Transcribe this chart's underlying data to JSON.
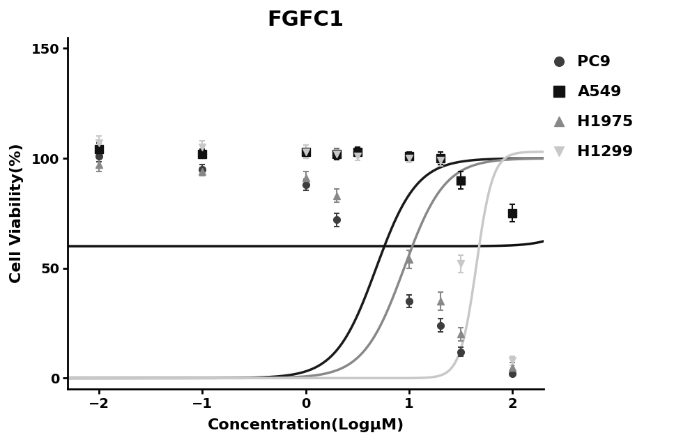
{
  "title": "FGFC1",
  "xlabel": "Concentration(LogμM)",
  "ylabel": "Cell Viability(%)",
  "xlim": [
    -2.3,
    2.3
  ],
  "ylim": [
    -5,
    155
  ],
  "yticks": [
    0,
    50,
    100,
    150
  ],
  "xticks": [
    -2,
    -1,
    0,
    1,
    2
  ],
  "background_color": "#ffffff",
  "series": [
    {
      "name": "PC9",
      "color": "#3d3d3d",
      "marker": "o",
      "markersize": 7,
      "linecolor": "#1a1a1a",
      "linewidth": 2.5,
      "x": [
        -2.0,
        -1.0,
        0.0,
        0.3,
        1.0,
        1.3,
        1.5,
        2.0
      ],
      "y": [
        101,
        95,
        88,
        72,
        35,
        24,
        12,
        2
      ],
      "yerr": [
        2.5,
        2.0,
        2.5,
        3.0,
        3.0,
        3.0,
        2.0,
        1.0
      ],
      "top": 100,
      "bottom": 0,
      "ic50_log": 0.68,
      "hill": 2.2
    },
    {
      "name": "A549",
      "color": "#111111",
      "marker": "s",
      "markersize": 8,
      "linecolor": "#111111",
      "linewidth": 2.5,
      "x": [
        -2.0,
        -1.0,
        0.0,
        0.3,
        0.5,
        1.0,
        1.3,
        1.5,
        2.0
      ],
      "y": [
        104,
        102,
        103,
        102,
        103,
        101,
        100,
        90,
        75
      ],
      "yerr": [
        3.0,
        2.0,
        3.0,
        2.5,
        2.0,
        2.0,
        3.0,
        4.0,
        4.0
      ],
      "top": 103,
      "bottom": 60,
      "ic50_log": 2.8,
      "hill": 2.5
    },
    {
      "name": "H1975",
      "color": "#888888",
      "marker": "^",
      "markersize": 7,
      "linecolor": "#888888",
      "linewidth": 2.5,
      "x": [
        -2.0,
        -1.0,
        0.0,
        0.3,
        1.0,
        1.3,
        1.5,
        2.0
      ],
      "y": [
        97,
        94,
        91,
        83,
        54,
        35,
        20,
        5
      ],
      "yerr": [
        3.0,
        2.0,
        3.0,
        3.0,
        4.0,
        4.0,
        3.0,
        2.0
      ],
      "top": 100,
      "bottom": 0,
      "ic50_log": 0.95,
      "hill": 2.2
    },
    {
      "name": "H1299",
      "color": "#c8c8c8",
      "marker": "v",
      "markersize": 7,
      "linecolor": "#c8c8c8",
      "linewidth": 2.5,
      "x": [
        -2.0,
        -1.0,
        0.0,
        0.3,
        0.5,
        1.0,
        1.3,
        1.5,
        2.0
      ],
      "y": [
        107,
        105,
        103,
        102,
        101,
        100,
        99,
        52,
        8
      ],
      "yerr": [
        3.0,
        3.0,
        3.0,
        2.0,
        2.0,
        2.0,
        2.5,
        4.0,
        2.0
      ],
      "top": 103,
      "bottom": 0,
      "ic50_log": 1.65,
      "hill": 5.5
    }
  ]
}
